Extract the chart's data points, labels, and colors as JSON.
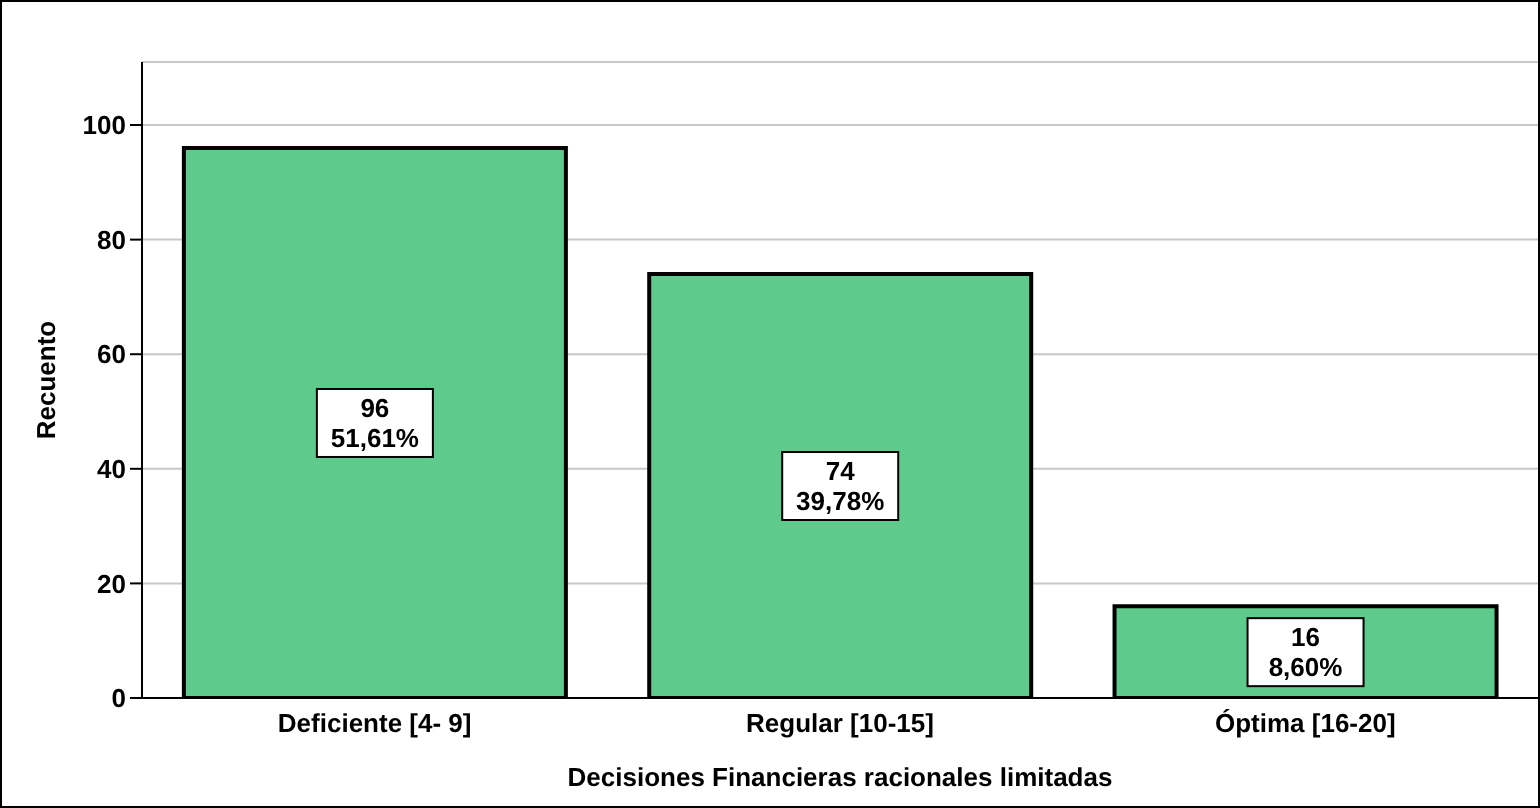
{
  "chart_data": {
    "type": "bar",
    "xlabel": "Decisiones Financieras racionales limitadas",
    "ylabel": "Recuento",
    "categories": [
      "Deficiente [4- 9]",
      "Regular [10-15]",
      "Óptima [16-20]"
    ],
    "values": [
      96,
      74,
      16
    ],
    "color": "#5ecb8d",
    "value_labels": [
      "96\n51,61%",
      "74\n39,78%",
      "16\n8,60%"
    ],
    "ylim": [
      0,
      111
    ],
    "yticks": [
      0,
      20,
      40,
      60,
      80,
      100
    ],
    "grid": "y"
  }
}
